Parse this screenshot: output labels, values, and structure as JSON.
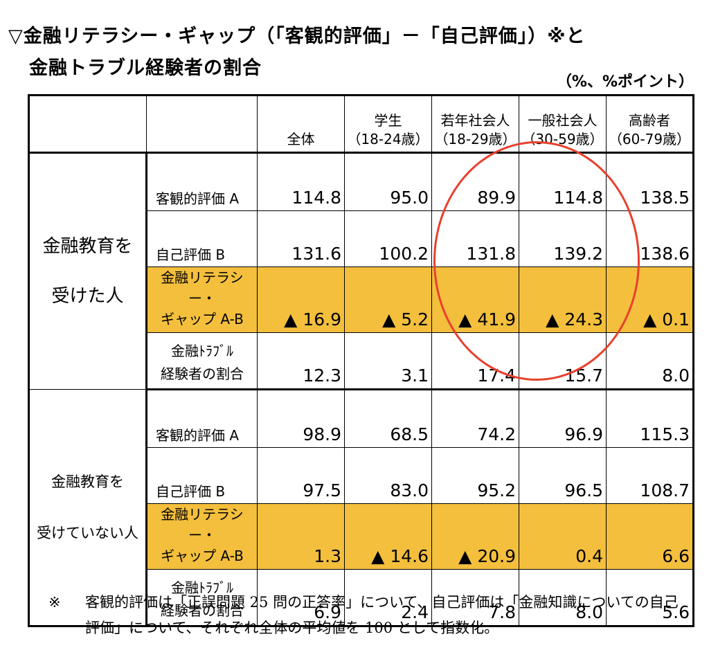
{
  "title": {
    "line1": "▽金融リテラシー・ギャップ（「客観的評価」－「自己評価」）※と",
    "line2": "金融トラブル経験者の割合",
    "unit": "（%、%ポイント）"
  },
  "table": {
    "columns": [
      "全体",
      "学生\n（18-24歳）",
      "若年社会人\n（18-29歳）",
      "一般社会人\n（30-59歳）",
      "高齢者\n（60-79歳）"
    ],
    "groups": [
      {
        "label": "金融教育を\n受けた人",
        "rows": [
          {
            "label": "客観的評価 A",
            "values": [
              "114.8",
              "95.0",
              "89.9",
              "114.8",
              "138.5"
            ]
          },
          {
            "label": "自己評価 B",
            "values": [
              "131.6",
              "100.2",
              "131.8",
              "139.2",
              "138.6"
            ]
          },
          {
            "label": "金融リテラシー・\nギャップ A-B",
            "values": [
              "▲ 16.9",
              "▲ 5.2",
              "▲ 41.9",
              "▲ 24.3",
              "▲ 0.1"
            ]
          },
          {
            "label": "金融ﾄﾗﾌﾞﾙ\n経験者の割合",
            "values": [
              "12.3",
              "3.1",
              "17.4",
              "15.7",
              "8.0"
            ]
          }
        ]
      },
      {
        "label": "金融教育を\n受けていない人",
        "rows": [
          {
            "label": "客観的評価 A",
            "values": [
              "98.9",
              "68.5",
              "74.2",
              "96.9",
              "115.3"
            ]
          },
          {
            "label": "自己評価 B",
            "values": [
              "97.5",
              "83.0",
              "95.2",
              "96.5",
              "108.7"
            ]
          },
          {
            "label": "金融リテラシー・\nギャップ A-B",
            "values": [
              "1.3",
              "▲ 14.6",
              "▲ 20.9",
              "0.4",
              "6.6"
            ]
          },
          {
            "label": "金融ﾄﾗﾌﾞﾙ\n経験者の割合",
            "values": [
              "6.9",
              "2.4",
              "7.8",
              "8.0",
              "5.6"
            ]
          }
        ]
      }
    ]
  },
  "note": {
    "mark": "※",
    "text": "客観的評価は「正誤問題 25 問の正答率」について、自己評価は「金融知識についての自己評価」について、それぞれ全体の平均値を 100 として指数化。"
  },
  "colors": {
    "highlight_row": "#f3bf3c",
    "circle": "#e8402c"
  }
}
